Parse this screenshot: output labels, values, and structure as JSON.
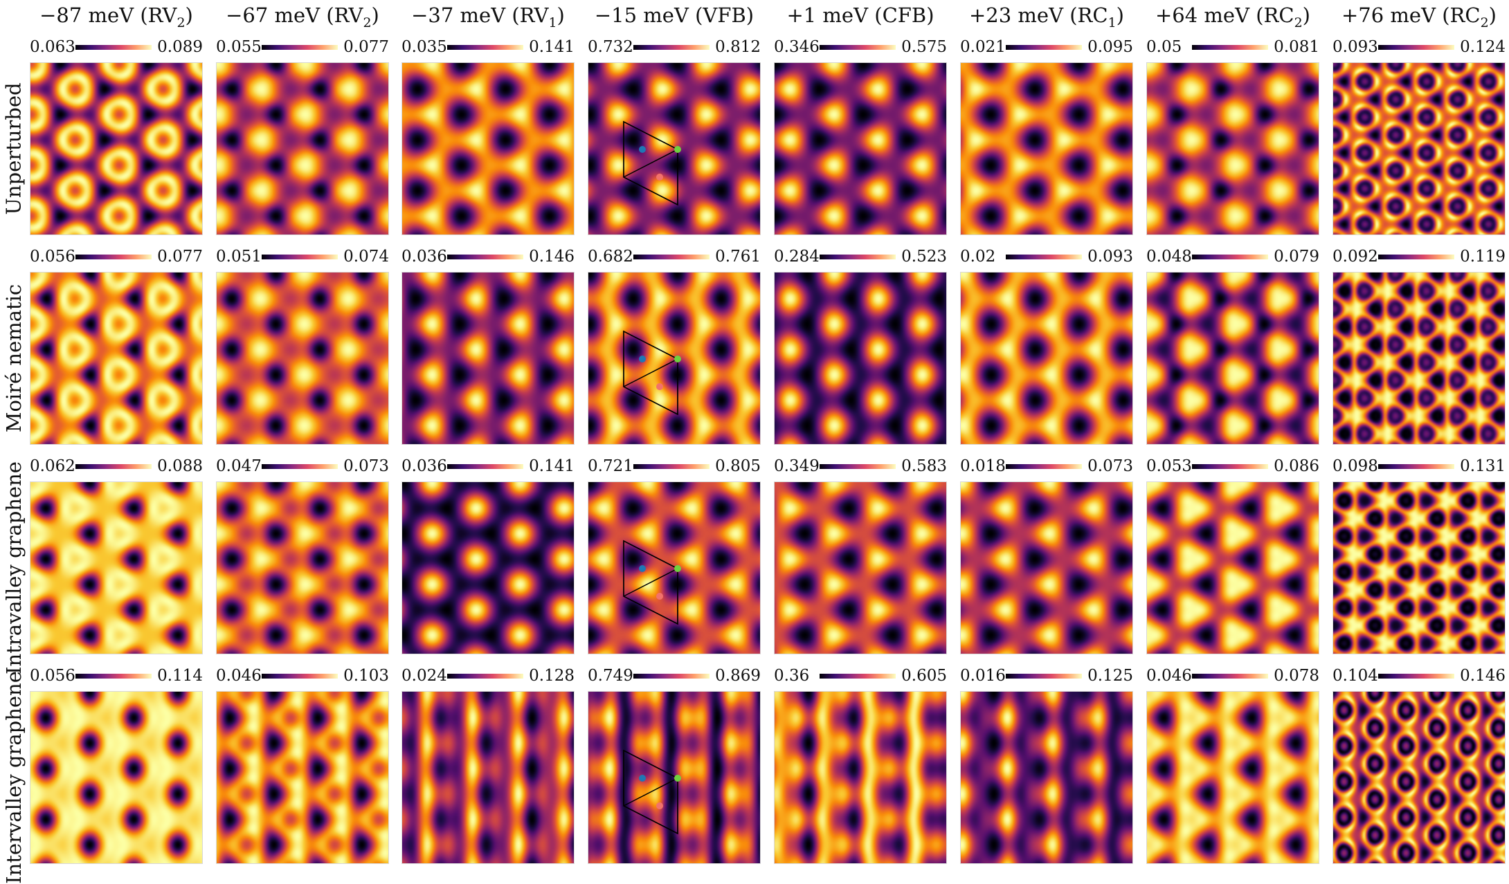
{
  "columns": [
    {
      "prefix": "−87 meV (RV",
      "sub": "2",
      "suffix": ")"
    },
    {
      "prefix": "−67 meV (RV",
      "sub": "2",
      "suffix": ")"
    },
    {
      "prefix": "−37 meV (RV",
      "sub": "1",
      "suffix": ")"
    },
    {
      "prefix": "−15 meV (VFB)",
      "sub": "",
      "suffix": ""
    },
    {
      "prefix": "+1 meV (CFB)",
      "sub": "",
      "suffix": ""
    },
    {
      "prefix": "+23 meV (RC",
      "sub": "1",
      "suffix": ")"
    },
    {
      "prefix": "+64 meV (RC",
      "sub": "2",
      "suffix": ")"
    },
    {
      "prefix": "+76 meV (RC",
      "sub": "2",
      "suffix": ")"
    }
  ],
  "rows": [
    {
      "label": "Unperturbed",
      "colorbars": [
        [
          "0.063",
          "0.089"
        ],
        [
          "0.055",
          "0.077"
        ],
        [
          "0.035",
          "0.141"
        ],
        [
          "0.732",
          "0.812"
        ],
        [
          "0.346",
          "0.575"
        ],
        [
          "0.021",
          "0.095"
        ],
        [
          "0.05",
          "0.081"
        ],
        [
          "0.093",
          "0.124"
        ]
      ]
    },
    {
      "label": "Moiré nematic",
      "colorbars": [
        [
          "0.056",
          "0.077"
        ],
        [
          "0.051",
          "0.074"
        ],
        [
          "0.036",
          "0.146"
        ],
        [
          "0.682",
          "0.761"
        ],
        [
          "0.284",
          "0.523"
        ],
        [
          "0.02",
          "0.093"
        ],
        [
          "0.048",
          "0.079"
        ],
        [
          "0.092",
          "0.119"
        ]
      ]
    },
    {
      "label": "Intravalley graphene",
      "colorbars": [
        [
          "0.062",
          "0.088"
        ],
        [
          "0.047",
          "0.073"
        ],
        [
          "0.036",
          "0.141"
        ],
        [
          "0.721",
          "0.805"
        ],
        [
          "0.349",
          "0.583"
        ],
        [
          "0.018",
          "0.073"
        ],
        [
          "0.053",
          "0.086"
        ],
        [
          "0.098",
          "0.131"
        ]
      ]
    },
    {
      "label": "Intervalley graphene",
      "colorbars": [
        [
          "0.056",
          "0.114"
        ],
        [
          "0.046",
          "0.103"
        ],
        [
          "0.024",
          "0.128"
        ],
        [
          "0.749",
          "0.869"
        ],
        [
          "0.36",
          "0.605"
        ],
        [
          "0.016",
          "0.125"
        ],
        [
          "0.046",
          "0.078"
        ],
        [
          "0.104",
          "0.146"
        ]
      ]
    }
  ],
  "colormap": "inferno",
  "colors": {
    "marker_blue": "#1f77b4",
    "marker_red": "#f2726b",
    "marker_green": "#6fd13f",
    "unit_cell_outline": "#000000"
  }
}
